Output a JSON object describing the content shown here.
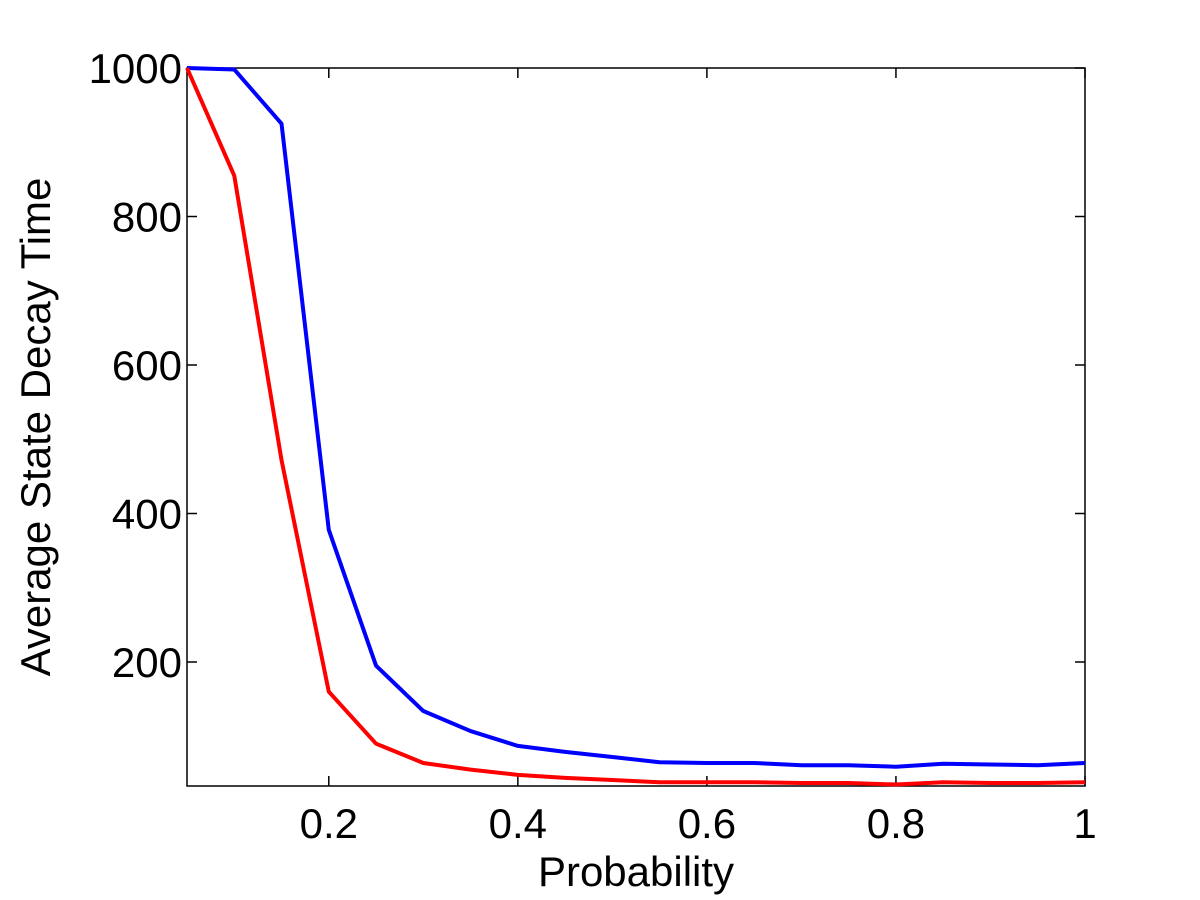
{
  "chart_data": {
    "type": "line",
    "x_label": "Probability",
    "y_label": "Average State Decay Time",
    "x": [
      0.05,
      0.1,
      0.15,
      0.2,
      0.25,
      0.3,
      0.35,
      0.4,
      0.45,
      0.5,
      0.55,
      0.6,
      0.65,
      0.7,
      0.75,
      0.8,
      0.85,
      0.9,
      0.95,
      1.0
    ],
    "series": [
      {
        "color": "#0000ff",
        "values": [
          1000,
          998,
          925,
          378,
          195,
          134,
          107,
          87,
          79,
          72,
          65,
          64,
          64,
          61,
          61,
          59,
          63,
          62,
          61,
          64
        ]
      },
      {
        "color": "#ff0000",
        "values": [
          1000,
          855,
          472,
          160,
          90,
          64,
          55,
          48,
          44,
          41,
          38,
          38,
          38,
          37,
          37,
          35,
          38,
          37,
          37,
          38
        ]
      }
    ],
    "xlim": [
      0.05,
      1
    ],
    "ylim": [
      33,
      1000
    ],
    "xticks": [
      0.2,
      0.4,
      0.6,
      0.8,
      1
    ],
    "yticks": [
      200,
      400,
      600,
      800,
      1000
    ],
    "grid": false
  }
}
